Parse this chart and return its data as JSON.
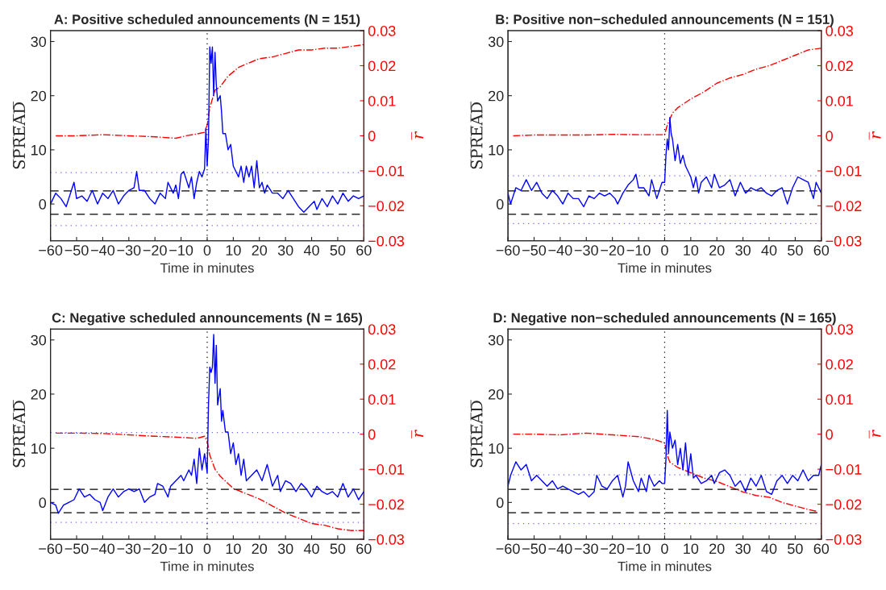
{
  "chart_data": [
    {
      "type": "line",
      "title": "A: Positive scheduled announcements (N = 151)",
      "xlabel": "Time in minutes",
      "ylabel": "S̅P̅R̅E̅A̅D̅",
      "y2label": "r̅",
      "xlim": [
        -60,
        60
      ],
      "xticks": [
        {
          "value": -60,
          "label": "−60"
        },
        {
          "value": -50,
          "label": "−50"
        },
        {
          "value": -40,
          "label": "−40"
        },
        {
          "value": -30,
          "label": "−30"
        },
        {
          "value": -20,
          "label": "−20"
        },
        {
          "value": -10,
          "label": "−10"
        },
        0,
        10,
        20,
        30,
        40,
        50,
        60
      ],
      "ylim": [
        -6.8,
        32
      ],
      "yticks": [
        0,
        10,
        20,
        30
      ],
      "y2lim": [
        -0.03,
        0.03
      ],
      "y2ticks": [
        {
          "value": -0.03,
          "label": "−0.03"
        },
        {
          "value": -0.02,
          "label": "−0.02"
        },
        {
          "value": -0.01,
          "label": "−0.01"
        },
        0,
        0.01,
        0.02,
        0.03
      ],
      "grid": false,
      "legend": false,
      "ref_lines": [
        {
          "axis": "y",
          "value": 2.4,
          "color": "#000000",
          "line_style": "dashed"
        },
        {
          "axis": "y",
          "value": -1.9,
          "color": "#000000",
          "line_style": "dashed"
        },
        {
          "axis": "y",
          "value": 5.8,
          "color": "#6666ff",
          "line_style": "dotted"
        },
        {
          "axis": "y",
          "value": -4,
          "color": "#6666ff",
          "line_style": "dotted"
        },
        {
          "axis": "x",
          "value": 0,
          "color": "#000000",
          "line_style": "dotted"
        }
      ],
      "series": [
        {
          "color": "#0000ff",
          "line_style": "solid",
          "x": [
            -60,
            -58,
            -56,
            -54,
            -52,
            -51,
            -50,
            -48,
            -46,
            -44,
            -42,
            -40,
            -38,
            -36,
            -34,
            -32,
            -30,
            -28,
            -27,
            -26,
            -24,
            -22,
            -20,
            -18,
            -16,
            -15,
            -13,
            -12,
            -11,
            -10,
            -9,
            -7,
            -6,
            -5,
            -4,
            -3,
            -2,
            -1,
            -0.5,
            0,
            0.5,
            1,
            1.5,
            2,
            2.5,
            3,
            3.5,
            4,
            5,
            5.5,
            6,
            7,
            8,
            9,
            10,
            11,
            12,
            13,
            14,
            15,
            16,
            17,
            18,
            19,
            20,
            21,
            22,
            23,
            25,
            27,
            29,
            31,
            33,
            35,
            37,
            39,
            41,
            42,
            44,
            46,
            48,
            50,
            52,
            54,
            56,
            58,
            60
          ],
          "values": [
            0,
            2,
            1,
            -0.5,
            2.5,
            4,
            1,
            1.5,
            0.5,
            2.5,
            0,
            2,
            1,
            2.5,
            0,
            1.5,
            2.5,
            3,
            6,
            2.5,
            2.5,
            1,
            0,
            2,
            1,
            4,
            2,
            3.5,
            1,
            5.5,
            6,
            3,
            5,
            1,
            4,
            6,
            5,
            6.5,
            14,
            7,
            12,
            29,
            26,
            29,
            20,
            28,
            22,
            19,
            20,
            17,
            13,
            13,
            10,
            11,
            7,
            6,
            5,
            7,
            4,
            7,
            5,
            7,
            3,
            8,
            3,
            4,
            2,
            3.5,
            2,
            2,
            1,
            2.5,
            1,
            -0.5,
            -1.5,
            -0.5,
            0.5,
            -1,
            1,
            -0.5,
            1.5,
            0,
            2,
            0.5,
            1.5,
            1,
            1.5
          ]
        },
        {
          "color": "#ff0000",
          "line_style": "dashdot",
          "axis": "y2",
          "x": [
            -58,
            -50,
            -40,
            -30,
            -20,
            -12,
            -8,
            -4,
            -1,
            0,
            1,
            3,
            5,
            8,
            12,
            15,
            20,
            25,
            30,
            35,
            40,
            45,
            50,
            55,
            60
          ],
          "values": [
            0,
            0,
            0.0003,
            0,
            -0.0003,
            -0.0007,
            0,
            0.0005,
            0.001,
            0.003,
            0.008,
            0.013,
            0.014,
            0.017,
            0.0195,
            0.0205,
            0.022,
            0.0225,
            0.0235,
            0.0245,
            0.0245,
            0.025,
            0.025,
            0.0255,
            0.026
          ]
        }
      ]
    },
    {
      "type": "line",
      "title": "B: Positive non−scheduled announcements (N = 151)",
      "xlabel": "Time in minutes",
      "ylabel": "S̅P̅R̅E̅A̅D̅",
      "y2label": "r̅",
      "xlim": [
        -60,
        60
      ],
      "xticks": [
        {
          "value": -60,
          "label": "−60"
        },
        {
          "value": -50,
          "label": "−50"
        },
        {
          "value": -40,
          "label": "−40"
        },
        {
          "value": -30,
          "label": "−30"
        },
        {
          "value": -20,
          "label": "−20"
        },
        {
          "value": -10,
          "label": "−10"
        },
        0,
        10,
        20,
        30,
        40,
        50,
        60
      ],
      "ylim": [
        -6.8,
        32
      ],
      "yticks": [
        0,
        10,
        20,
        30
      ],
      "y2lim": [
        -0.03,
        0.03
      ],
      "y2ticks": [
        {
          "value": -0.03,
          "label": "−0.03"
        },
        {
          "value": -0.02,
          "label": "−0.02"
        },
        {
          "value": -0.01,
          "label": "−0.01"
        },
        0,
        0.01,
        0.02,
        0.03
      ],
      "grid": false,
      "legend": false,
      "ref_lines": [
        {
          "axis": "y",
          "value": 2.4,
          "color": "#000000",
          "line_style": "dashed"
        },
        {
          "axis": "y",
          "value": -1.9,
          "color": "#000000",
          "line_style": "dashed"
        },
        {
          "axis": "y",
          "value": 5.2,
          "color": "#6666ff",
          "line_style": "dotted"
        },
        {
          "axis": "y",
          "value": -3.6,
          "color": "#6666ff",
          "line_style": "dotted"
        },
        {
          "axis": "x",
          "value": 0,
          "color": "#000000",
          "line_style": "dotted"
        }
      ],
      "series": [
        {
          "color": "#0000ff",
          "line_style": "solid",
          "x": [
            -60,
            -59,
            -57,
            -55,
            -53,
            -51,
            -49,
            -47,
            -45,
            -43,
            -41,
            -39,
            -37,
            -35,
            -33,
            -31,
            -29,
            -27,
            -25,
            -23,
            -21,
            -19,
            -18,
            -16,
            -14,
            -12,
            -11,
            -10,
            -8,
            -6,
            -5,
            -3,
            -2,
            -1,
            0,
            0.5,
            1,
            1.5,
            2,
            2.5,
            3,
            4,
            5,
            6,
            7,
            8,
            9,
            10,
            11,
            12,
            13,
            14,
            16,
            18,
            19,
            21,
            23,
            25,
            27,
            29,
            31,
            33,
            35,
            37,
            39,
            41,
            43,
            45,
            47,
            49,
            51,
            53,
            55,
            57,
            58,
            60
          ],
          "values": [
            2,
            0,
            3,
            2.5,
            4.5,
            2.5,
            4,
            2,
            1,
            2.5,
            1.5,
            0,
            2,
            1,
            1,
            -0.5,
            1.5,
            1,
            2,
            1.5,
            2,
            1,
            0,
            2,
            3.5,
            4.5,
            5.5,
            3,
            3,
            1.5,
            4.5,
            1,
            2.5,
            4,
            4,
            9,
            12,
            10,
            16,
            13,
            12,
            8,
            11,
            7.5,
            9,
            7,
            6,
            5,
            3,
            5,
            2,
            4,
            5,
            3,
            5.5,
            3,
            3.5,
            4.5,
            1.5,
            4,
            2,
            3,
            2.5,
            3,
            2,
            1.5,
            2.5,
            3,
            0,
            3,
            5,
            4.5,
            4,
            1,
            4,
            2
          ]
        },
        {
          "color": "#ff0000",
          "line_style": "dashdot",
          "axis": "y2",
          "x": [
            -58,
            -50,
            -40,
            -30,
            -20,
            -10,
            -2,
            0,
            1,
            3,
            5,
            10,
            15,
            20,
            25,
            30,
            35,
            40,
            45,
            50,
            55,
            60
          ],
          "values": [
            0,
            0.0002,
            0.0002,
            0.0002,
            0.0004,
            0.0003,
            0.0003,
            0.0003,
            0.003,
            0.0065,
            0.008,
            0.0105,
            0.0125,
            0.015,
            0.0165,
            0.0175,
            0.019,
            0.02,
            0.0215,
            0.023,
            0.0245,
            0.025
          ]
        }
      ]
    },
    {
      "type": "line",
      "title": "C: Negative scheduled announcements (N = 165)",
      "xlabel": "Time in minutes",
      "ylabel": "S̅P̅R̅E̅A̅D̅",
      "y2label": "r̅",
      "xlim": [
        -60,
        60
      ],
      "xticks": [
        {
          "value": -60,
          "label": "−60"
        },
        {
          "value": -50,
          "label": "−50"
        },
        {
          "value": -40,
          "label": "−40"
        },
        {
          "value": -30,
          "label": "−30"
        },
        {
          "value": -20,
          "label": "−20"
        },
        {
          "value": -10,
          "label": "−10"
        },
        0,
        10,
        20,
        30,
        40,
        50,
        60
      ],
      "ylim": [
        -6.8,
        32
      ],
      "yticks": [
        0,
        10,
        20,
        30
      ],
      "y2lim": [
        -0.03,
        0.03
      ],
      "y2ticks": [
        {
          "value": -0.03,
          "label": "−0.03"
        },
        {
          "value": -0.02,
          "label": "−0.02"
        },
        {
          "value": -0.01,
          "label": "−0.01"
        },
        0,
        0.01,
        0.02,
        0.03
      ],
      "grid": false,
      "legend": false,
      "ref_lines": [
        {
          "axis": "y",
          "value": 2.4,
          "color": "#000000",
          "line_style": "dashed"
        },
        {
          "axis": "y",
          "value": -1.9,
          "color": "#000000",
          "line_style": "dashed"
        },
        {
          "axis": "y",
          "value": 12.9,
          "color": "#6666ff",
          "line_style": "dotted"
        },
        {
          "axis": "y",
          "value": -3.7,
          "color": "#6666ff",
          "line_style": "dotted"
        },
        {
          "axis": "x",
          "value": 0,
          "color": "#000000",
          "line_style": "dotted"
        }
      ],
      "series": [
        {
          "color": "#0000ff",
          "line_style": "solid",
          "x": [
            -60,
            -58,
            -57,
            -55,
            -53,
            -51,
            -49,
            -47,
            -45,
            -43,
            -41,
            -40,
            -38,
            -36,
            -34,
            -32,
            -30,
            -28,
            -26,
            -24,
            -22,
            -20,
            -19,
            -17,
            -15,
            -14,
            -12,
            -10,
            -9,
            -7,
            -6,
            -5,
            -4,
            -3,
            -2,
            -1,
            0,
            0.5,
            1,
            1.5,
            2,
            2.5,
            3,
            3.5,
            4,
            5,
            5.5,
            6,
            7,
            8,
            9,
            10,
            11,
            12,
            13,
            14,
            15,
            17,
            19,
            21,
            23,
            25,
            27,
            28,
            30,
            32,
            34,
            36,
            38,
            40,
            42,
            44,
            46,
            48,
            50,
            52,
            54,
            56,
            58,
            60
          ],
          "values": [
            0,
            -0.5,
            -2,
            -0.5,
            0,
            0.5,
            2.5,
            1,
            1.5,
            0.5,
            0,
            -1.5,
            1,
            2.5,
            1,
            2,
            2.5,
            2,
            2.5,
            0,
            1,
            1.5,
            3.5,
            3,
            1,
            3,
            4,
            5,
            4,
            6,
            5,
            8,
            3.5,
            10,
            6,
            9,
            5.5,
            18,
            25,
            24,
            25,
            31,
            22,
            29,
            18,
            21,
            15,
            17,
            13,
            13,
            9,
            11,
            7,
            9,
            5,
            8,
            4,
            5,
            6,
            4,
            7,
            3,
            5,
            2,
            4,
            3.5,
            2,
            3.5,
            2.5,
            1,
            3,
            2,
            1.5,
            2,
            1,
            3.5,
            1,
            2.5,
            0.5,
            2
          ]
        },
        {
          "color": "#ff0000",
          "line_style": "dashdot",
          "axis": "y2",
          "x": [
            -58,
            -50,
            -40,
            -30,
            -20,
            -10,
            -4,
            -1,
            0,
            1,
            3,
            5,
            10,
            15,
            20,
            25,
            30,
            35,
            40,
            45,
            50,
            55,
            60
          ],
          "values": [
            0.0003,
            0.0003,
            0.0002,
            -0.0002,
            -0.0006,
            -0.0009,
            -0.0012,
            -0.0006,
            -0.002,
            -0.006,
            -0.01,
            -0.012,
            -0.0155,
            -0.017,
            -0.0185,
            -0.0205,
            -0.0225,
            -0.024,
            -0.0255,
            -0.026,
            -0.027,
            -0.0275,
            -0.0275
          ]
        }
      ]
    },
    {
      "type": "line",
      "title": "D: Negative non−scheduled announcements (N = 165)",
      "xlabel": "Time in minutes",
      "ylabel": "S̅P̅R̅E̅A̅D̅",
      "y2label": "r̅",
      "xlim": [
        -60,
        60
      ],
      "xticks": [
        {
          "value": -60,
          "label": "−60"
        },
        {
          "value": -50,
          "label": "−50"
        },
        {
          "value": -40,
          "label": "−40"
        },
        {
          "value": -30,
          "label": "−30"
        },
        {
          "value": -20,
          "label": "−20"
        },
        {
          "value": -10,
          "label": "−10"
        },
        0,
        10,
        20,
        30,
        40,
        50,
        60
      ],
      "ylim": [
        -6.8,
        32
      ],
      "yticks": [
        0,
        10,
        20,
        30
      ],
      "y2lim": [
        -0.03,
        0.03
      ],
      "y2ticks": [
        {
          "value": -0.03,
          "label": "−0.03"
        },
        {
          "value": -0.02,
          "label": "−0.02"
        },
        {
          "value": -0.01,
          "label": "−0.01"
        },
        0,
        0.01,
        0.02,
        0.03
      ],
      "grid": false,
      "legend": false,
      "ref_lines": [
        {
          "axis": "y",
          "value": 2.4,
          "color": "#000000",
          "line_style": "dashed"
        },
        {
          "axis": "y",
          "value": -1.9,
          "color": "#000000",
          "line_style": "dashed"
        },
        {
          "axis": "y",
          "value": 5.1,
          "color": "#6666ff",
          "line_style": "dotted"
        },
        {
          "axis": "y",
          "value": -3.9,
          "color": "#6666ff",
          "line_style": "dotted"
        },
        {
          "axis": "x",
          "value": 0,
          "color": "#000000",
          "line_style": "dotted"
        }
      ],
      "series": [
        {
          "color": "#0000ff",
          "line_style": "solid",
          "x": [
            -60,
            -59,
            -57,
            -55,
            -53,
            -51,
            -49,
            -47,
            -45,
            -43,
            -41,
            -39,
            -37,
            -35,
            -33,
            -31,
            -29,
            -27,
            -26,
            -24,
            -22,
            -20,
            -18,
            -16,
            -15,
            -14,
            -12,
            -10,
            -9,
            -7,
            -6,
            -4,
            -2,
            -1,
            0,
            0.5,
            1,
            1.5,
            2,
            3,
            4,
            5,
            6,
            7,
            8,
            9,
            10,
            11,
            12,
            14,
            16,
            18,
            19,
            21,
            23,
            25,
            27,
            29,
            31,
            33,
            35,
            37,
            39,
            41,
            43,
            45,
            47,
            49,
            51,
            53,
            55,
            57,
            59,
            60
          ],
          "values": [
            3,
            5,
            7.5,
            6,
            7,
            4,
            5,
            4,
            3,
            4,
            2.5,
            3,
            2.5,
            2,
            1.5,
            2,
            1,
            2,
            5,
            3,
            2.5,
            4,
            5,
            1,
            3,
            7.5,
            4,
            2,
            4.5,
            2,
            5,
            3,
            4,
            3.5,
            3.5,
            8,
            17,
            9,
            13,
            10,
            11.5,
            7,
            10,
            6,
            11,
            5,
            9,
            4.5,
            5,
            3.5,
            4,
            5,
            3.5,
            5.5,
            6,
            5,
            3,
            4,
            2,
            4.5,
            3,
            5,
            2,
            1.5,
            4,
            5,
            3.5,
            5,
            4,
            6,
            4,
            5,
            5,
            7
          ]
        },
        {
          "color": "#ff0000",
          "line_style": "dashdot",
          "axis": "y2",
          "x": [
            -58,
            -50,
            -40,
            -30,
            -20,
            -10,
            -4,
            0,
            1,
            2,
            5,
            10,
            15,
            20,
            25,
            30,
            35,
            40,
            45,
            50,
            55,
            58
          ],
          "values": [
            0,
            0,
            -0.0002,
            0.0003,
            -0.0002,
            -0.0007,
            -0.0015,
            -0.0025,
            -0.006,
            -0.008,
            -0.0095,
            -0.011,
            -0.0125,
            -0.0135,
            -0.015,
            -0.0165,
            -0.0175,
            -0.018,
            -0.0195,
            -0.0205,
            -0.0215,
            -0.022
          ]
        }
      ]
    }
  ]
}
